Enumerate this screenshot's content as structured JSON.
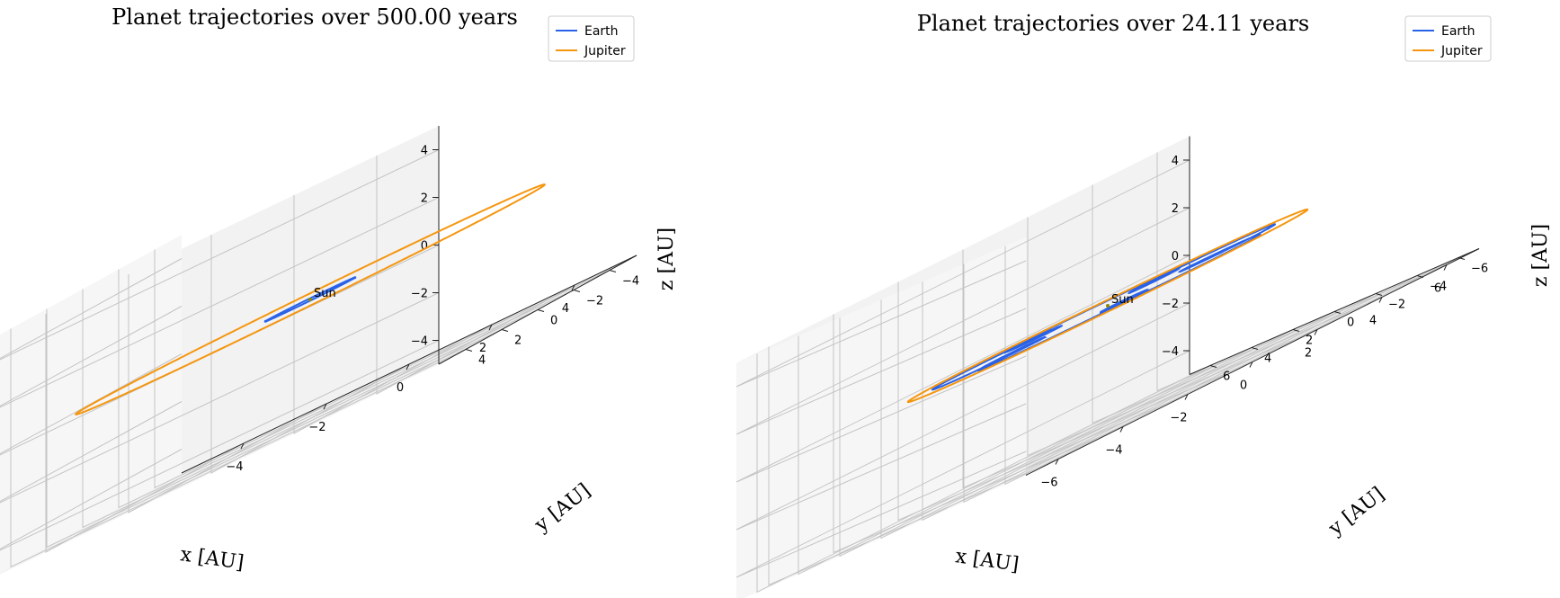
{
  "chart_data": [
    {
      "type": "line",
      "projection": "3d",
      "title": "Planet trajectories over 500.00 years",
      "xlabel": "x [AU]",
      "ylabel": "y [AU]",
      "zlabel": "z [AU]",
      "xlim": [
        -5.5,
        5.5
      ],
      "ylim": [
        -5.5,
        5.5
      ],
      "zlim": [
        -5,
        5
      ],
      "xticks": [
        -4,
        -2,
        0,
        2,
        4
      ],
      "yticks": [
        -4,
        -2,
        0,
        2,
        4
      ],
      "zticks": [
        -4,
        -2,
        0,
        2,
        4
      ],
      "grid": true,
      "legend": "top-right",
      "series": [
        {
          "name": "Earth",
          "color": "#2962e8",
          "shape": "circle",
          "center": [
            0,
            0,
            0
          ],
          "radius": 1.0
        },
        {
          "name": "Jupiter",
          "color": "#f5960f",
          "shape": "circle",
          "center": [
            0,
            0,
            0
          ],
          "radius": 5.2
        }
      ],
      "annotations": [
        {
          "text": "Sun",
          "x": 0,
          "y": 0,
          "z": 0,
          "marker_color": "#8a8a00"
        }
      ]
    },
    {
      "type": "line",
      "projection": "3d",
      "title": "Planet trajectories over 24.11 years",
      "xlabel": "x [AU]",
      "ylabel": "y [AU]",
      "zlabel": "z [AU]",
      "xlim": [
        -7,
        7
      ],
      "ylim": [
        -7,
        7
      ],
      "zlim": [
        -5,
        5
      ],
      "xticks": [
        -6,
        -4,
        -2,
        0,
        2,
        4,
        6
      ],
      "yticks": [
        -6,
        -4,
        -2,
        0,
        2,
        4,
        6
      ],
      "zticks": [
        -4,
        -2,
        0,
        2,
        4
      ],
      "grid": true,
      "legend": "top-right",
      "series": [
        {
          "name": "Earth",
          "color": "#2962e8",
          "shape": "epicycloid",
          "center": [
            0,
            0,
            0
          ],
          "radius": 3.2
        },
        {
          "name": "Jupiter",
          "color": "#f5960f",
          "shape": "circle",
          "center": [
            0,
            0,
            0
          ],
          "radius": 5.2
        }
      ],
      "annotations": [
        {
          "text": "Sun",
          "x": 0,
          "y": 0,
          "z": 0,
          "marker_color": "#8a8a00"
        }
      ]
    }
  ]
}
